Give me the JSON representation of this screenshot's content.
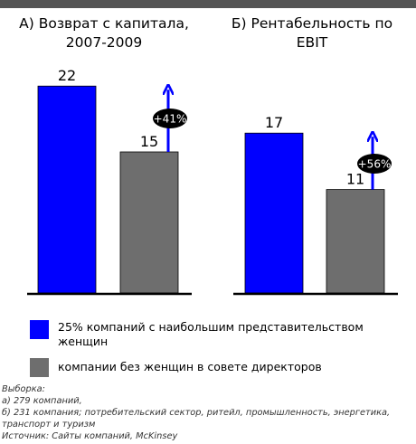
{
  "colors": {
    "blue": "#0000ff",
    "gray": "#6e6e6e",
    "badge": "#000000",
    "arrow": "#0000ff"
  },
  "panels": [
    {
      "title_line1": "А) Возврат с капитала,",
      "title_line2": "2007-2009"
    },
    {
      "title_line1": "Б) Рентабельность по",
      "title_line2": "EBIT"
    }
  ],
  "chart_data": [
    {
      "type": "bar",
      "title": "А) Возврат с капитала, 2007-2009",
      "categories": [
        "25% компаний с наибольшим представительством женщин",
        "компании без женщин в совете директоров"
      ],
      "values": [
        22,
        15
      ],
      "data_labels": [
        "22",
        "15"
      ],
      "annotation": "+41%"
    },
    {
      "type": "bar",
      "title": "Б) Рентабельность по EBIT",
      "categories": [
        "25% компаний с наибольшим представительством женщин",
        "компании без женщин в совете директоров"
      ],
      "values": [
        17,
        11
      ],
      "data_labels": [
        "17",
        "11"
      ],
      "annotation": "+56%"
    }
  ],
  "legend": [
    {
      "label": "25% компаний с наибольшим представительством женщин",
      "color": "#0000ff"
    },
    {
      "label": "компании без женщин в совете директоров",
      "color": "#6e6e6e"
    }
  ],
  "notes": {
    "line1": "Выборка:",
    "line2": "а) 279 компаний,",
    "line3": "б) 231 компания; потребительский сектор, ритейл, промышленность, энергетика,",
    "line4": "транспорт и туризм",
    "line5": "Источник: Сайты компаний, McKinsey"
  }
}
